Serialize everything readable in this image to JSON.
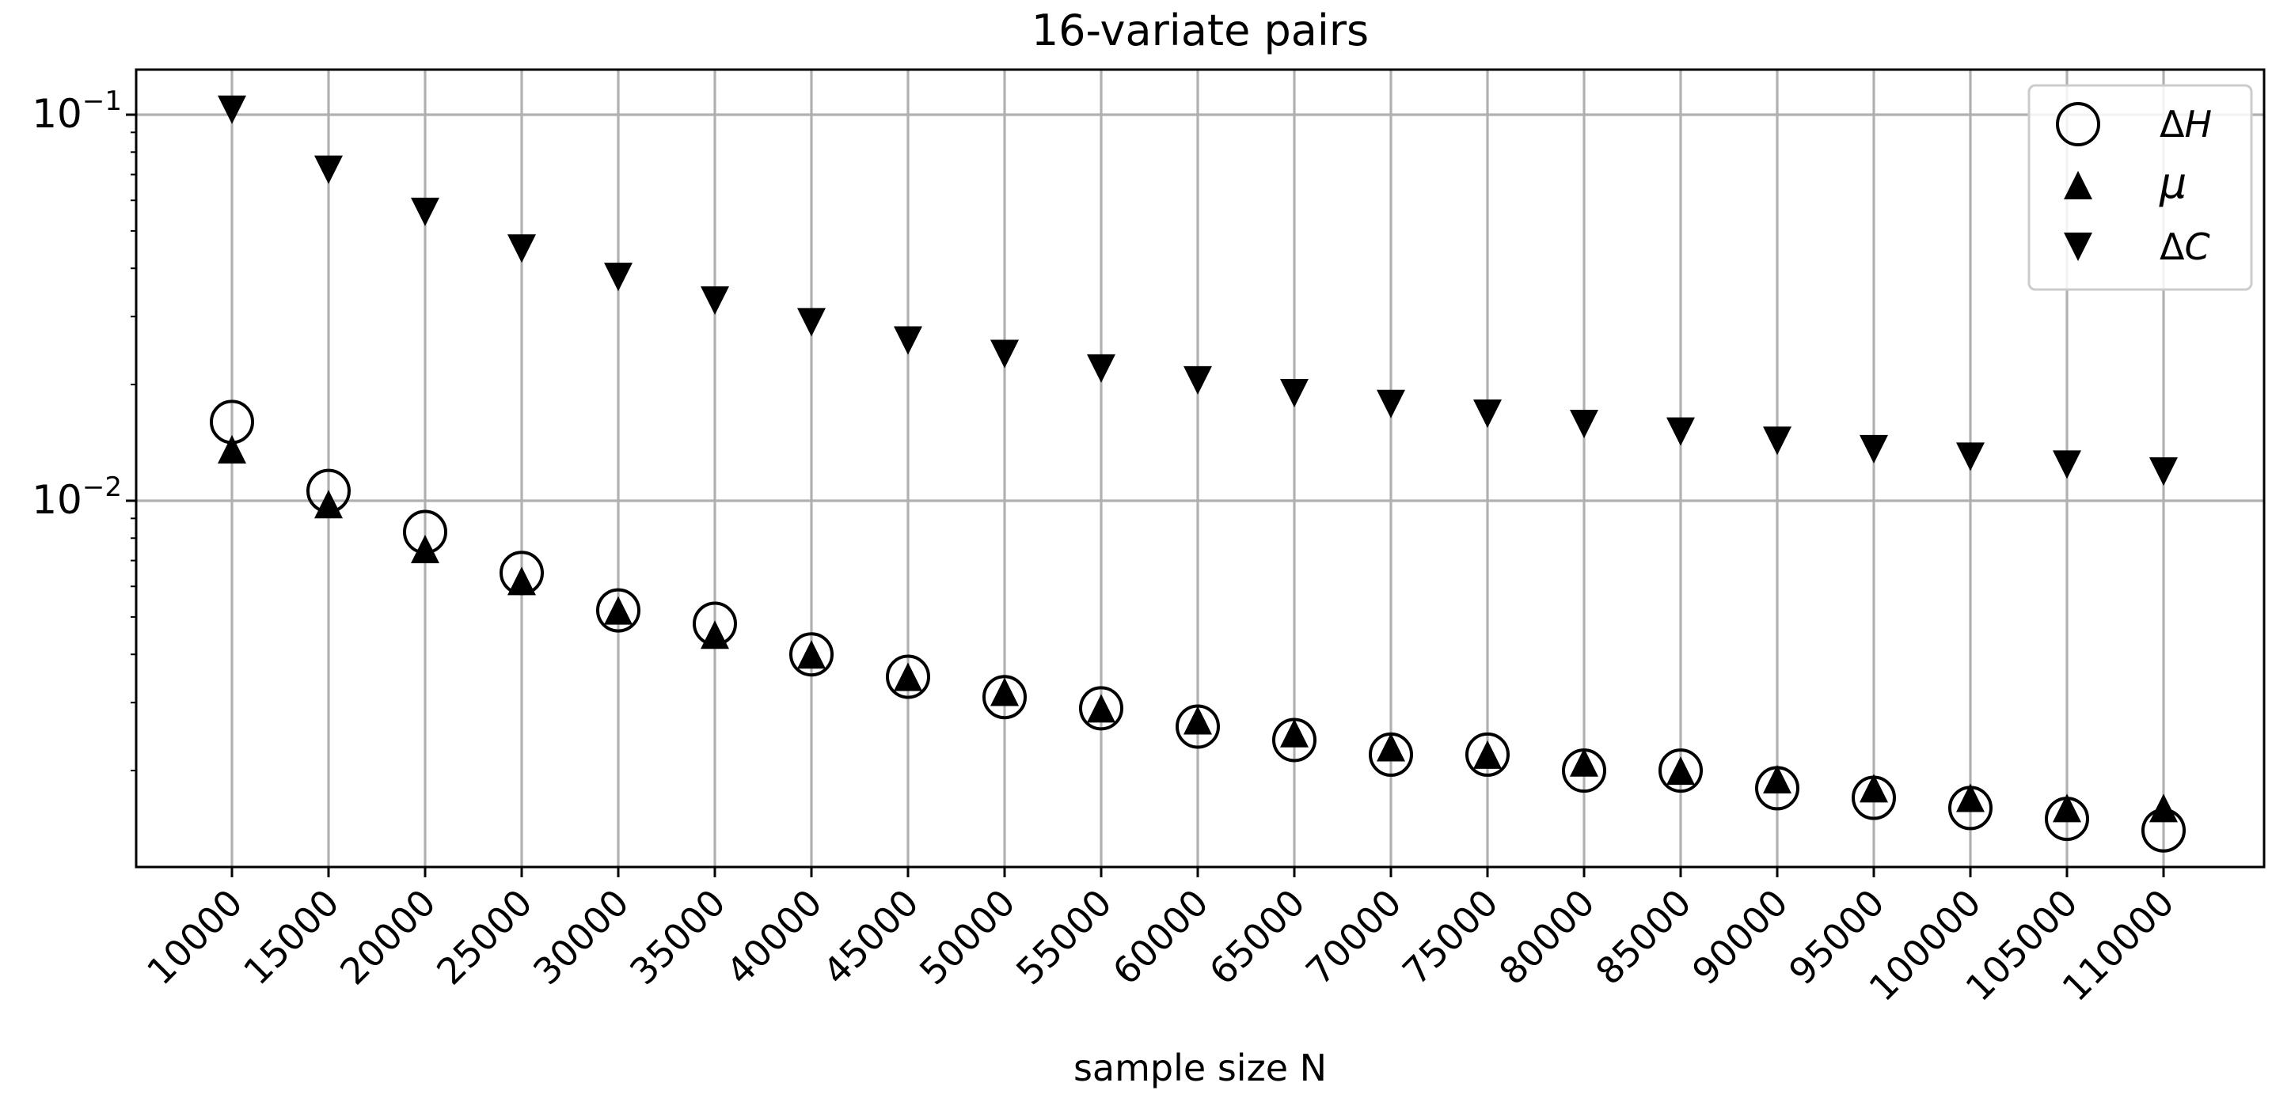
{
  "chart_data": {
    "type": "scatter",
    "title": "16-variate pairs",
    "xlabel": "sample size N",
    "ylabel": "",
    "yscale": "log",
    "ylim": [
      0.0013,
      0.12
    ],
    "grid": true,
    "legend_position": "top-right",
    "x": [
      10000,
      15000,
      20000,
      25000,
      30000,
      35000,
      40000,
      45000,
      50000,
      55000,
      60000,
      65000,
      70000,
      75000,
      80000,
      85000,
      90000,
      95000,
      100000,
      105000,
      110000
    ],
    "x_tick_labels": [
      "10000",
      "15000",
      "20000",
      "25000",
      "30000",
      "35000",
      "40000",
      "45000",
      "50000",
      "55000",
      "60000",
      "65000",
      "70000",
      "75000",
      "80000",
      "85000",
      "90000",
      "95000",
      "100000",
      "105000",
      "110000"
    ],
    "y_ticks": [
      {
        "value": 0.1,
        "base": "10",
        "exp": "−1"
      },
      {
        "value": 0.01,
        "base": "10",
        "exp": "−2"
      }
    ],
    "series": [
      {
        "name": "ΔH",
        "marker": "circle-open",
        "color": "#000000",
        "values": [
          0.016,
          0.0106,
          0.0083,
          0.0065,
          0.0052,
          0.0048,
          0.004,
          0.0035,
          0.0031,
          0.0029,
          0.0026,
          0.0024,
          0.0022,
          0.0022,
          0.002,
          0.002,
          0.0018,
          0.0017,
          0.0016,
          0.0015,
          0.0014
        ]
      },
      {
        "name": "μ",
        "marker": "triangle-up",
        "color": "#000000",
        "values": [
          0.0136,
          0.0098,
          0.0075,
          0.0062,
          0.0052,
          0.0045,
          0.004,
          0.0035,
          0.0032,
          0.0029,
          0.0027,
          0.0025,
          0.0023,
          0.0022,
          0.0021,
          0.002,
          0.0019,
          0.0018,
          0.0017,
          0.0016,
          0.0016
        ]
      },
      {
        "name": "ΔC",
        "marker": "triangle-down",
        "color": "#000000",
        "values": [
          0.103,
          0.072,
          0.056,
          0.045,
          0.038,
          0.033,
          0.029,
          0.026,
          0.024,
          0.022,
          0.0205,
          0.019,
          0.0178,
          0.0168,
          0.0158,
          0.0151,
          0.0143,
          0.0136,
          0.013,
          0.0124,
          0.0119
        ]
      }
    ]
  }
}
